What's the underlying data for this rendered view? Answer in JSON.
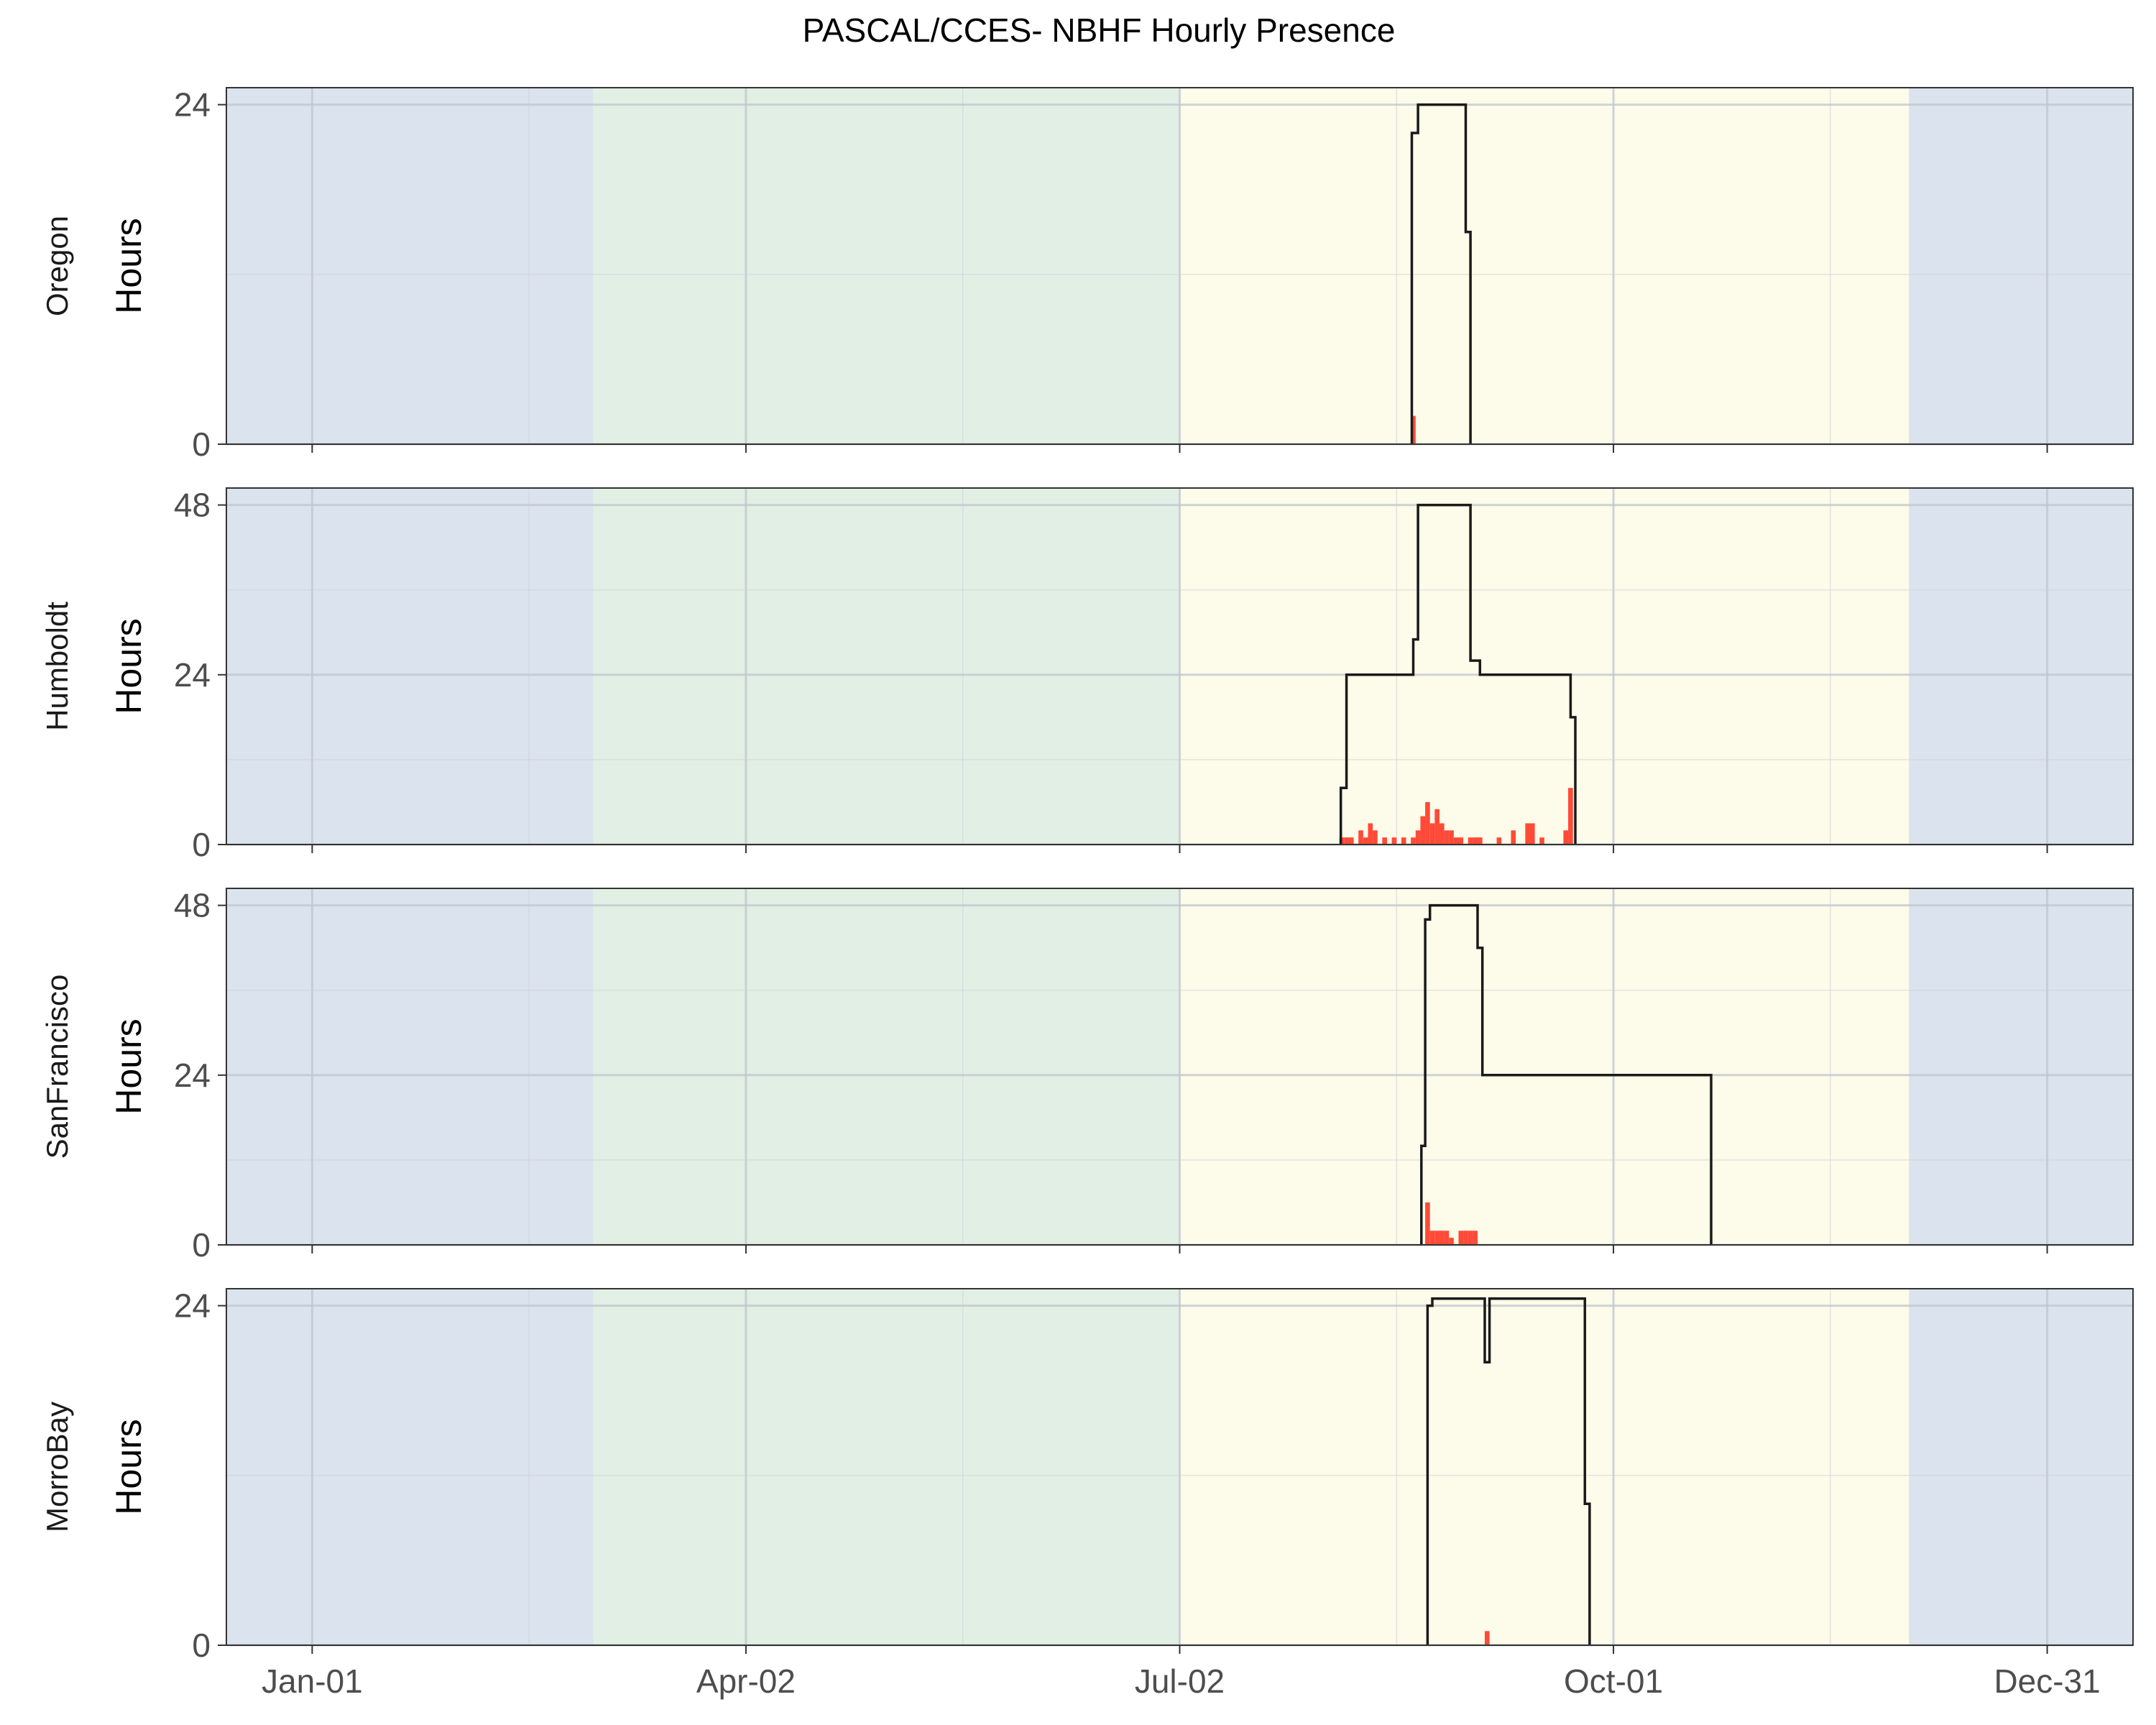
{
  "chart_data": {
    "type": "step-line + bar (faceted)",
    "title": "PASCAL/CCES- NBHF Hourly Presence",
    "xlabel": "",
    "x_axis_ticks": [
      {
        "label": "Jan-01",
        "day": 1
      },
      {
        "label": "Apr-02",
        "day": 92
      },
      {
        "label": "Jul-02",
        "day": 183
      },
      {
        "label": "Oct-01",
        "day": 274
      },
      {
        "label": "Dec-31",
        "day": 365
      }
    ],
    "xlim_day_of_year": [
      -17,
      383
    ],
    "season_shading": [
      {
        "from_day": -17,
        "to_day": 60,
        "color": "#dae3ee"
      },
      {
        "from_day": 60,
        "to_day": 183,
        "color": "#e1efe4"
      },
      {
        "from_day": 183,
        "to_day": 336,
        "color": "#fdfbe9"
      },
      {
        "from_day": 336,
        "to_day": 383,
        "color": "#dae3ee"
      }
    ],
    "series_styles": {
      "effort": {
        "color": "#1a1a1a"
      },
      "presence": {
        "color": "#ff4a37"
      }
    },
    "grid": true,
    "panels": [
      {
        "strip_label": "Oregon",
        "ylabel": "Hours",
        "ylim": [
          0,
          25.2
        ],
        "yticks": [
          0,
          24
        ],
        "effort_step": [
          [
            231.7,
            0
          ],
          [
            231.7,
            22
          ],
          [
            233,
            22
          ],
          [
            233,
            24
          ],
          [
            243,
            24
          ],
          [
            243,
            15
          ],
          [
            244,
            15
          ],
          [
            244,
            0
          ]
        ],
        "presence_bars": [
          [
            232,
            2
          ]
        ]
      },
      {
        "strip_label": "Humboldt",
        "ylabel": "Hours",
        "ylim": [
          0,
          50.4
        ],
        "yticks": [
          0,
          24,
          48
        ],
        "effort_step": [
          [
            216.8,
            0
          ],
          [
            216.8,
            8
          ],
          [
            218,
            8
          ],
          [
            218,
            24
          ],
          [
            232,
            24
          ],
          [
            232,
            29
          ],
          [
            233,
            29
          ],
          [
            233,
            48
          ],
          [
            244,
            48
          ],
          [
            244,
            26
          ],
          [
            246,
            26
          ],
          [
            246,
            24
          ],
          [
            265,
            24
          ],
          [
            265,
            18
          ],
          [
            266,
            18
          ],
          [
            266,
            0
          ]
        ],
        "presence_bars": [
          [
            217,
            1
          ],
          [
            218,
            1
          ],
          [
            219,
            1
          ],
          [
            221,
            2
          ],
          [
            222,
            1
          ],
          [
            223,
            3
          ],
          [
            224,
            2
          ],
          [
            226,
            1
          ],
          [
            228,
            1
          ],
          [
            230,
            1
          ],
          [
            232,
            1
          ],
          [
            233,
            2
          ],
          [
            234,
            4
          ],
          [
            235,
            6
          ],
          [
            236,
            3
          ],
          [
            237,
            5
          ],
          [
            238,
            3
          ],
          [
            239,
            2
          ],
          [
            240,
            2
          ],
          [
            241,
            1
          ],
          [
            242,
            1
          ],
          [
            244,
            1
          ],
          [
            245,
            1
          ],
          [
            246,
            1
          ],
          [
            250,
            1
          ],
          [
            253,
            2
          ],
          [
            256,
            3
          ],
          [
            257,
            3
          ],
          [
            259,
            1
          ],
          [
            264,
            2
          ],
          [
            265,
            8
          ]
        ]
      },
      {
        "strip_label": "SanFrancisco",
        "ylabel": "Hours",
        "ylim": [
          0,
          50.4
        ],
        "yticks": [
          0,
          24,
          48
        ],
        "effort_step": [
          [
            233.7,
            0
          ],
          [
            233.7,
            14
          ],
          [
            234.5,
            14
          ],
          [
            234.5,
            46
          ],
          [
            235.5,
            46
          ],
          [
            235.5,
            48
          ],
          [
            245.5,
            48
          ],
          [
            245.5,
            42
          ],
          [
            246.5,
            42
          ],
          [
            246.5,
            24
          ],
          [
            294.5,
            24
          ],
          [
            294.5,
            0
          ]
        ],
        "presence_bars": [
          [
            235,
            6
          ],
          [
            236,
            2
          ],
          [
            237,
            2
          ],
          [
            238,
            2
          ],
          [
            239,
            2
          ],
          [
            240,
            1
          ],
          [
            242,
            2
          ],
          [
            243,
            2
          ],
          [
            244,
            2
          ],
          [
            245,
            2
          ]
        ]
      },
      {
        "strip_label": "MorroBay",
        "ylabel": "Hours",
        "ylim": [
          0,
          25.2
        ],
        "yticks": [
          0,
          24
        ],
        "effort_step": [
          [
            235,
            0
          ],
          [
            235,
            24
          ],
          [
            236,
            24
          ],
          [
            236,
            24.5
          ],
          [
            247,
            24.5
          ],
          [
            247,
            20
          ],
          [
            248,
            20
          ],
          [
            248,
            24.5
          ],
          [
            268,
            24.5
          ],
          [
            268,
            10
          ],
          [
            269,
            10
          ],
          [
            269,
            0
          ]
        ],
        "presence_bars": [
          [
            247.5,
            1
          ]
        ]
      }
    ]
  }
}
